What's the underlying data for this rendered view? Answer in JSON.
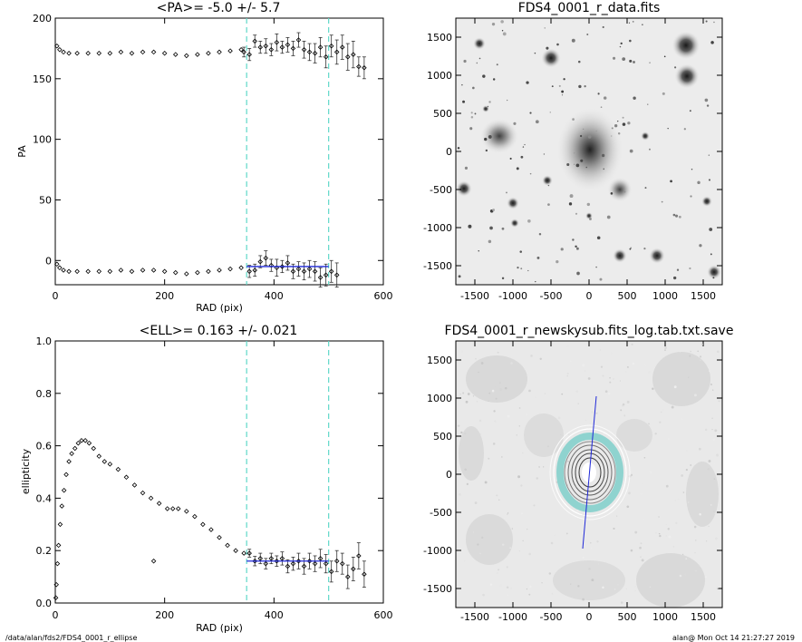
{
  "colors": {
    "bg": "#ffffff",
    "axis": "#000000",
    "fit": "#1f28d8",
    "guide": "#5fd8c8",
    "img_bg": "#e6e6e6",
    "iso_cyan": "#8fd3cf"
  },
  "footer": {
    "path": "/data/alan/fds2/FDS4_0001_r_ellipse",
    "stamp": "alan@  Mon Oct 14 21:27:27 2019"
  },
  "chart_data": [
    {
      "type": "scatter",
      "title": "<PA>=  -5.0 +/-   5.7",
      "xlabel": "RAD (pix)",
      "ylabel": "PA",
      "xlim": [
        0,
        600
      ],
      "ylim": [
        -20,
        200
      ],
      "xticks": [
        "0",
        "200",
        "400",
        "600"
      ],
      "yticks": [
        "0",
        "50",
        "100",
        "150",
        "200"
      ],
      "guides_x": [
        350,
        500
      ],
      "fit": {
        "x": [
          350,
          500
        ],
        "y": -5
      },
      "series": [
        {
          "values": {
            "x": [
              3,
              8,
              15,
              25,
              40,
              60,
              80,
              100,
              120,
              140,
              160,
              180,
              200,
              220,
              240,
              260,
              280,
              300,
              320,
              340
            ],
            "y": [
              177,
              174,
              172,
              171,
              171,
              171,
              171,
              171,
              172,
              171,
              172,
              172,
              171,
              170,
              169,
              170,
              171,
              172,
              173,
              174
            ]
          }
        },
        {
          "values": {
            "x": [
              345,
              355,
              365,
              375,
              385,
              395,
              405,
              415,
              425,
              435,
              445,
              455,
              465,
              475,
              485,
              495,
              505,
              515,
              525,
              535,
              545,
              555,
              565
            ],
            "y": [
              172,
              170,
              181,
              176,
              177,
              174,
              180,
              176,
              178,
              175,
              182,
              174,
              172,
              171,
              176,
              168,
              177,
              172,
              176,
              168,
              170,
              160,
              159
            ],
            "err": [
              4,
              5,
              5,
              5,
              6,
              5,
              7,
              5,
              6,
              6,
              6,
              7,
              7,
              8,
              8,
              9,
              9,
              10,
              10,
              11,
              11,
              8,
              9
            ]
          }
        },
        {
          "values": {
            "x": [
              3,
              8,
              15,
              25,
              40,
              60,
              80,
              100,
              120,
              140,
              160,
              180,
              200,
              220,
              240,
              260,
              280,
              300,
              320,
              340
            ],
            "y": [
              -3,
              -6,
              -8,
              -9,
              -9,
              -9,
              -9,
              -9,
              -8,
              -9,
              -8,
              -8,
              -9,
              -10,
              -11,
              -10,
              -9,
              -8,
              -7,
              -6
            ]
          }
        },
        {
          "values": {
            "x": [
              355,
              365,
              375,
              385,
              395,
              405,
              415,
              425,
              435,
              445,
              455,
              465,
              475,
              485,
              495,
              505,
              515
            ],
            "y": [
              -9,
              -8,
              -1,
              2,
              -4,
              -6,
              -5,
              -2,
              -9,
              -7,
              -9,
              -7,
              -9,
              -14,
              -12,
              -9,
              -12
            ],
            "err": [
              5,
              5,
              5,
              6,
              5,
              7,
              5,
              6,
              6,
              6,
              7,
              7,
              8,
              8,
              9,
              9,
              10
            ]
          }
        }
      ]
    },
    {
      "type": "image",
      "title": "FDS4_0001_r_data.fits",
      "xlim": [
        -1750,
        1750
      ],
      "ylim": [
        -1750,
        1750
      ],
      "xticks": [
        "-1500",
        "-1000",
        "-500",
        "0",
        "500",
        "1000",
        "1500"
      ],
      "yticks": [
        "-1500",
        "-1000",
        "-500",
        "0",
        "500",
        "1000",
        "1500"
      ]
    },
    {
      "type": "scatter",
      "title": "<ELL>= 0.163 +/-  0.021",
      "xlabel": "RAD (pix)",
      "ylabel": "ellipticity",
      "xlim": [
        0,
        600
      ],
      "ylim": [
        0,
        1.0
      ],
      "xticks": [
        "0",
        "200",
        "400",
        "600"
      ],
      "yticks": [
        "0.0",
        "0.2",
        "0.4",
        "0.6",
        "0.8",
        "1.0"
      ],
      "guides_x": [
        350,
        500
      ],
      "fit": {
        "x": [
          350,
          500
        ],
        "y": 0.16
      },
      "series": [
        {
          "values": {
            "x": [
              1,
              2,
              4,
              6,
              9,
              12,
              16,
              20,
              25,
              30,
              36,
              42,
              48,
              55,
              62,
              70,
              80,
              90,
              100,
              115,
              130,
              145,
              160,
              175,
              190,
              205,
              215,
              225,
              240,
              255,
              270,
              285,
              300,
              315,
              330,
              345
            ],
            "y": [
              0.02,
              0.07,
              0.15,
              0.22,
              0.3,
              0.37,
              0.43,
              0.49,
              0.54,
              0.57,
              0.59,
              0.61,
              0.62,
              0.62,
              0.61,
              0.59,
              0.56,
              0.54,
              0.53,
              0.51,
              0.48,
              0.45,
              0.42,
              0.4,
              0.38,
              0.36,
              0.36,
              0.36,
              0.35,
              0.33,
              0.3,
              0.28,
              0.25,
              0.22,
              0.2,
              0.19
            ]
          }
        },
        {
          "values": {
            "x": [
              180
            ],
            "y": [
              0.16
            ]
          }
        },
        {
          "values": {
            "x": [
              355,
              365,
              375,
              385,
              395,
              405,
              415,
              425,
              435,
              445,
              455,
              465,
              475,
              485,
              495,
              505,
              515,
              525,
              535,
              545,
              555,
              565
            ],
            "y": [
              0.19,
              0.16,
              0.17,
              0.15,
              0.17,
              0.16,
              0.17,
              0.14,
              0.15,
              0.16,
              0.14,
              0.16,
              0.15,
              0.17,
              0.15,
              0.12,
              0.16,
              0.15,
              0.1,
              0.13,
              0.18,
              0.11
            ],
            "err": [
              0.015,
              0.018,
              0.02,
              0.02,
              0.02,
              0.02,
              0.025,
              0.025,
              0.025,
              0.03,
              0.03,
              0.03,
              0.03,
              0.035,
              0.035,
              0.04,
              0.04,
              0.04,
              0.045,
              0.045,
              0.05,
              0.05
            ]
          }
        }
      ]
    },
    {
      "type": "image",
      "title": "FDS4_0001_r_newskysub.fits_log.tab.txt.save",
      "xlim": [
        -1750,
        1750
      ],
      "ylim": [
        -1750,
        1750
      ],
      "xticks": [
        "-1500",
        "-1000",
        "-500",
        "0",
        "500",
        "1000",
        "1500"
      ],
      "yticks": [
        "-1500",
        "-1000",
        "-500",
        "0",
        "500",
        "1000",
        "1500"
      ]
    }
  ]
}
